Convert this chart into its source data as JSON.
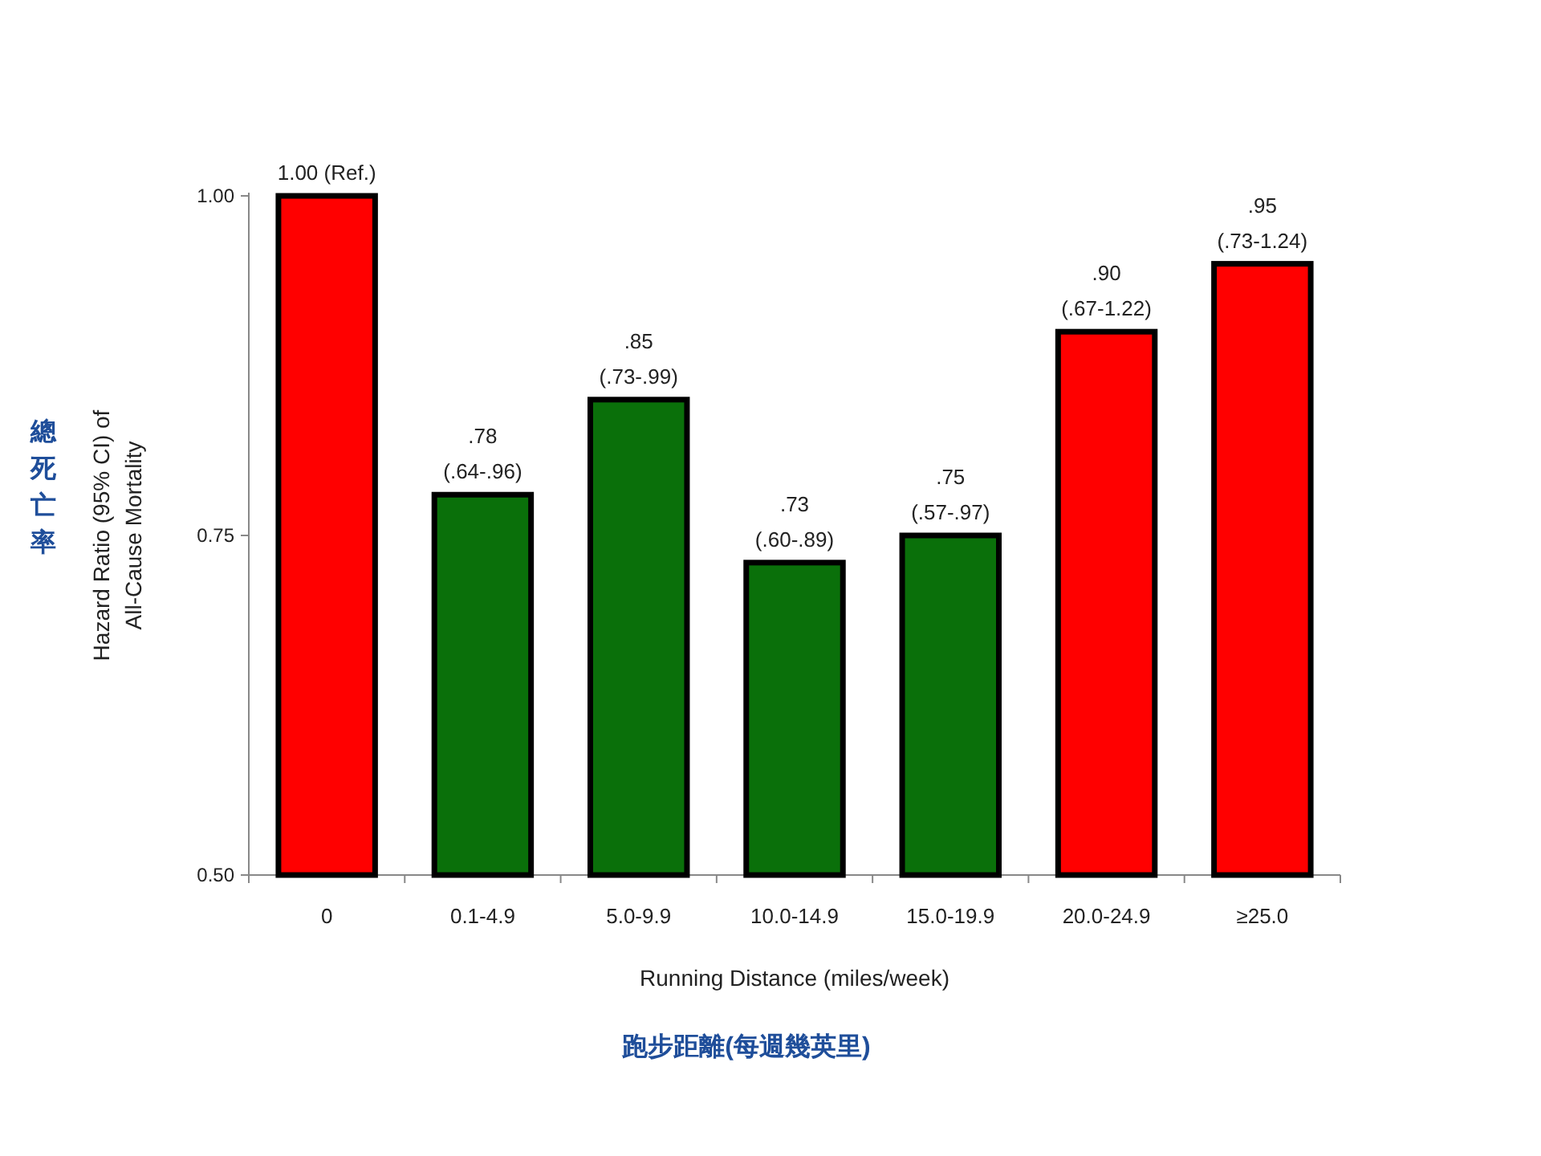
{
  "chart_data": {
    "type": "bar",
    "categories": [
      "0",
      "0.1-4.9",
      "5.0-9.9",
      "10.0-14.9",
      "15.0-19.9",
      "20.0-24.9",
      "≥25.0"
    ],
    "values": [
      1.0,
      0.78,
      0.85,
      0.73,
      0.75,
      0.9,
      0.95
    ],
    "colors": [
      "#ff0000",
      "#0a700a",
      "#0a700a",
      "#0a700a",
      "#0a700a",
      "#ff0000",
      "#ff0000"
    ],
    "value_labels": [
      "1.00 (Ref.)",
      ".78\n(.64-.96)",
      ".85\n(.73-.99)",
      ".73\n(.60-.89)",
      ".75\n(.57-.97)",
      ".90\n(.67-1.22)",
      ".95\n(.73-1.24)"
    ],
    "xlabel": "Running Distance (miles/week)",
    "ylabel": "Hazard Ratio (95% CI) of\nAll-Cause Mortality",
    "ylim": [
      0.5,
      1.0
    ],
    "yticks": [
      {
        "value": 0.5,
        "label": "0.50"
      },
      0.75,
      {
        "value": 1.0,
        "label": "1.00"
      }
    ],
    "annotations": [
      "總死亡率",
      "跑步距離(每週幾英里)"
    ]
  }
}
